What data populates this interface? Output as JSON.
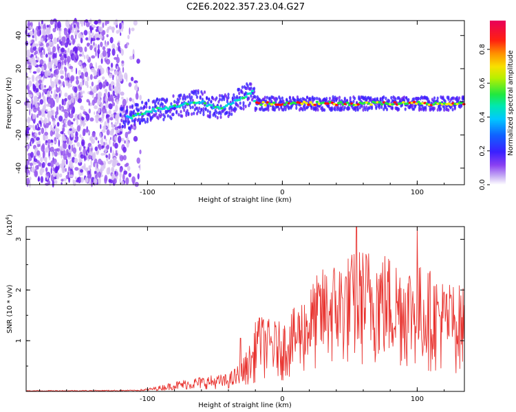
{
  "figure_title": "C2E6.2022.357.23.04.G27",
  "colors": {
    "signal": "#e8322e",
    "axis": "#000000",
    "colormap": [
      "#ffffff",
      "#d8c4f2",
      "#9a5cf0",
      "#6a1ef0",
      "#2a30ff",
      "#00b8ff",
      "#00e8c0",
      "#20e840",
      "#f0f000",
      "#ff8000",
      "#ff1010",
      "#e8005a"
    ]
  },
  "chart_data": [
    {
      "type": "heatmap",
      "title": "",
      "xlabel": "Height of straight line (km)",
      "ylabel": "Frequency (Hz)",
      "xlim": [
        -190,
        135
      ],
      "ylim": [
        -50,
        49
      ],
      "x_ticks": [
        -100,
        0,
        100
      ],
      "x_tick_labels": [
        "-100",
        "0",
        "100"
      ],
      "y_ticks": [
        -40,
        -20,
        0,
        20,
        40
      ],
      "y_tick_labels": [
        "-40",
        "-20",
        "0",
        "20",
        "40"
      ],
      "ridge": {
        "description_points_x": [
          -120,
          -110,
          -100,
          -90,
          -80,
          -70,
          -60,
          -50,
          -40,
          -30,
          -22,
          -20,
          0,
          40,
          80,
          135
        ],
        "description_points_y": [
          -10,
          -9,
          -6,
          -4,
          -3,
          -1,
          0,
          -4,
          -2,
          2,
          6,
          -1,
          -1,
          -1,
          -1,
          -1
        ]
      },
      "colorbar": {
        "label": "Normalized spectral amplitude",
        "range": [
          0,
          0.97
        ],
        "ticks": [
          0.0,
          0.2,
          0.4,
          0.6,
          0.8
        ],
        "tick_labels": [
          "0.0",
          "0.2",
          "0.4",
          "0.6",
          "0.8"
        ]
      }
    },
    {
      "type": "line",
      "title": "",
      "xlabel": "Height of straight line (km)",
      "ylabel": "SNR (10 * v/v)",
      "y_multiplier_label": "(x10",
      "y_multiplier_exp": "4",
      "y_multiplier_close": ")",
      "xlim": [
        -190,
        135
      ],
      "ylim": [
        0,
        3.25
      ],
      "x_ticks": [
        -100,
        0,
        100
      ],
      "x_tick_labels": [
        "-100",
        "0",
        "100"
      ],
      "y_ticks": [
        1,
        2,
        3
      ],
      "y_tick_labels": [
        "1",
        "2",
        "3"
      ],
      "series": [
        {
          "name": "SNR",
          "envelope_x": [
            -190,
            -110,
            -100,
            -90,
            -80,
            -60,
            -40,
            -30,
            -20,
            -10,
            0,
            10,
            20,
            30,
            40,
            50,
            60,
            70,
            80,
            90,
            100,
            110,
            120,
            135
          ],
          "envelope_y": [
            0.02,
            0.03,
            0.06,
            0.12,
            0.2,
            0.3,
            0.35,
            0.6,
            1.2,
            1.1,
            1.05,
            1.3,
            1.6,
            1.9,
            2.0,
            2.1,
            2.2,
            2.2,
            2.1,
            2.0,
            1.95,
            1.85,
            1.7,
            1.6
          ],
          "peaks": [
            {
              "x": -31,
              "y": 1.05
            },
            {
              "x": -17,
              "y": 1.45
            },
            {
              "x": 30,
              "y": 2.4
            },
            {
              "x": 55,
              "y": 3.25
            },
            {
              "x": 100,
              "y": 3.25
            },
            {
              "x": 125,
              "y": 1.9
            }
          ]
        }
      ]
    }
  ]
}
